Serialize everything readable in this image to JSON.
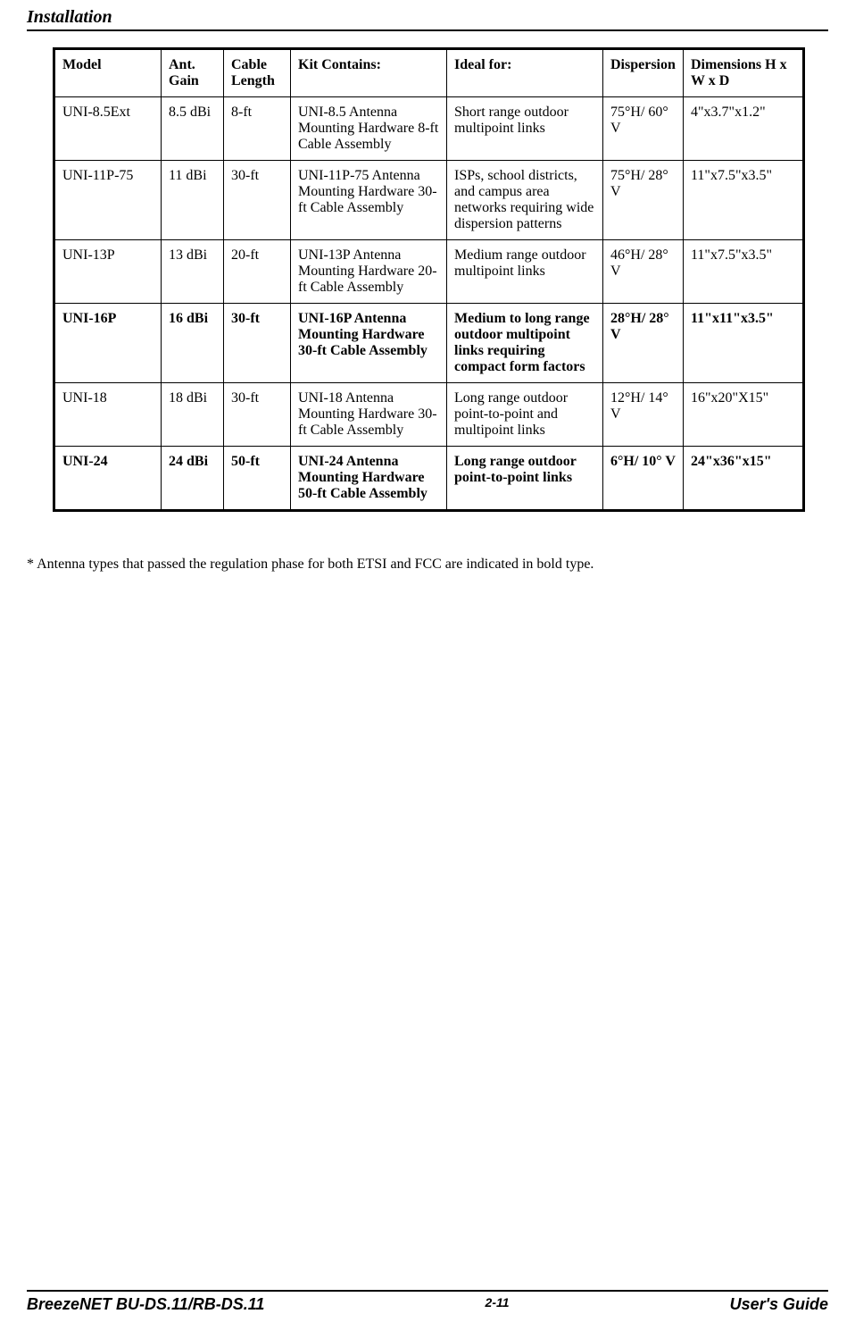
{
  "header": {
    "section_title": "Installation"
  },
  "table": {
    "columns": [
      "Model",
      "Ant. Gain",
      "Cable Length",
      "Kit Contains:",
      "Ideal for:",
      "Dispersion",
      "Dimensions H x W x D"
    ],
    "rows": [
      {
        "bold": false,
        "cells": [
          "UNI-8.5Ext",
          "8.5 dBi",
          "8-ft",
          "UNI-8.5 Antenna Mounting Hardware 8-ft Cable Assembly",
          "Short range outdoor multipoint links",
          "75°H/ 60° V",
          "4\"x3.7\"x1.2\""
        ]
      },
      {
        "bold": false,
        "cells": [
          "UNI-11P-75",
          "11 dBi",
          "30-ft",
          "UNI-11P-75 Antenna Mounting Hardware 30-ft Cable Assembly",
          "ISPs, school districts, and campus area networks requiring wide dispersion patterns",
          "75°H/ 28° V",
          "11\"x7.5\"x3.5\""
        ]
      },
      {
        "bold": false,
        "cells": [
          "UNI-13P",
          "13 dBi",
          "20-ft",
          "UNI-13P Antenna Mounting Hardware 20-ft Cable Assembly",
          "Medium range outdoor multipoint links",
          "46°H/ 28° V",
          "11\"x7.5\"x3.5\""
        ]
      },
      {
        "bold": true,
        "cells": [
          "UNI-16P",
          "16 dBi",
          "30-ft",
          "UNI-16P Antenna Mounting Hardware 30-ft Cable Assembly",
          "Medium to long range outdoor multipoint links requiring compact form factors",
          "28°H/ 28° V",
          "11\"x11\"x3.5\""
        ]
      },
      {
        "bold": false,
        "cells": [
          "UNI-18",
          "18 dBi",
          "30-ft",
          "UNI-18 Antenna Mounting Hardware 30-ft Cable Assembly",
          "Long range outdoor point-to-point and multipoint links",
          "12°H/ 14° V",
          "16\"x20\"X15\""
        ]
      },
      {
        "bold": true,
        "cells": [
          "UNI-24",
          "24 dBi",
          "50-ft",
          "UNI-24 Antenna Mounting Hardware 50-ft Cable Assembly",
          "Long range outdoor point-to-point links",
          "6°H/ 10° V",
          "24\"x36\"x15\""
        ]
      }
    ]
  },
  "footnote": "* Antenna types that passed the regulation phase for both ETSI and FCC are indicated in bold type.",
  "footer": {
    "left": "BreezeNET BU-DS.11/RB-DS.11",
    "center": "2-11",
    "right": "User's Guide"
  }
}
